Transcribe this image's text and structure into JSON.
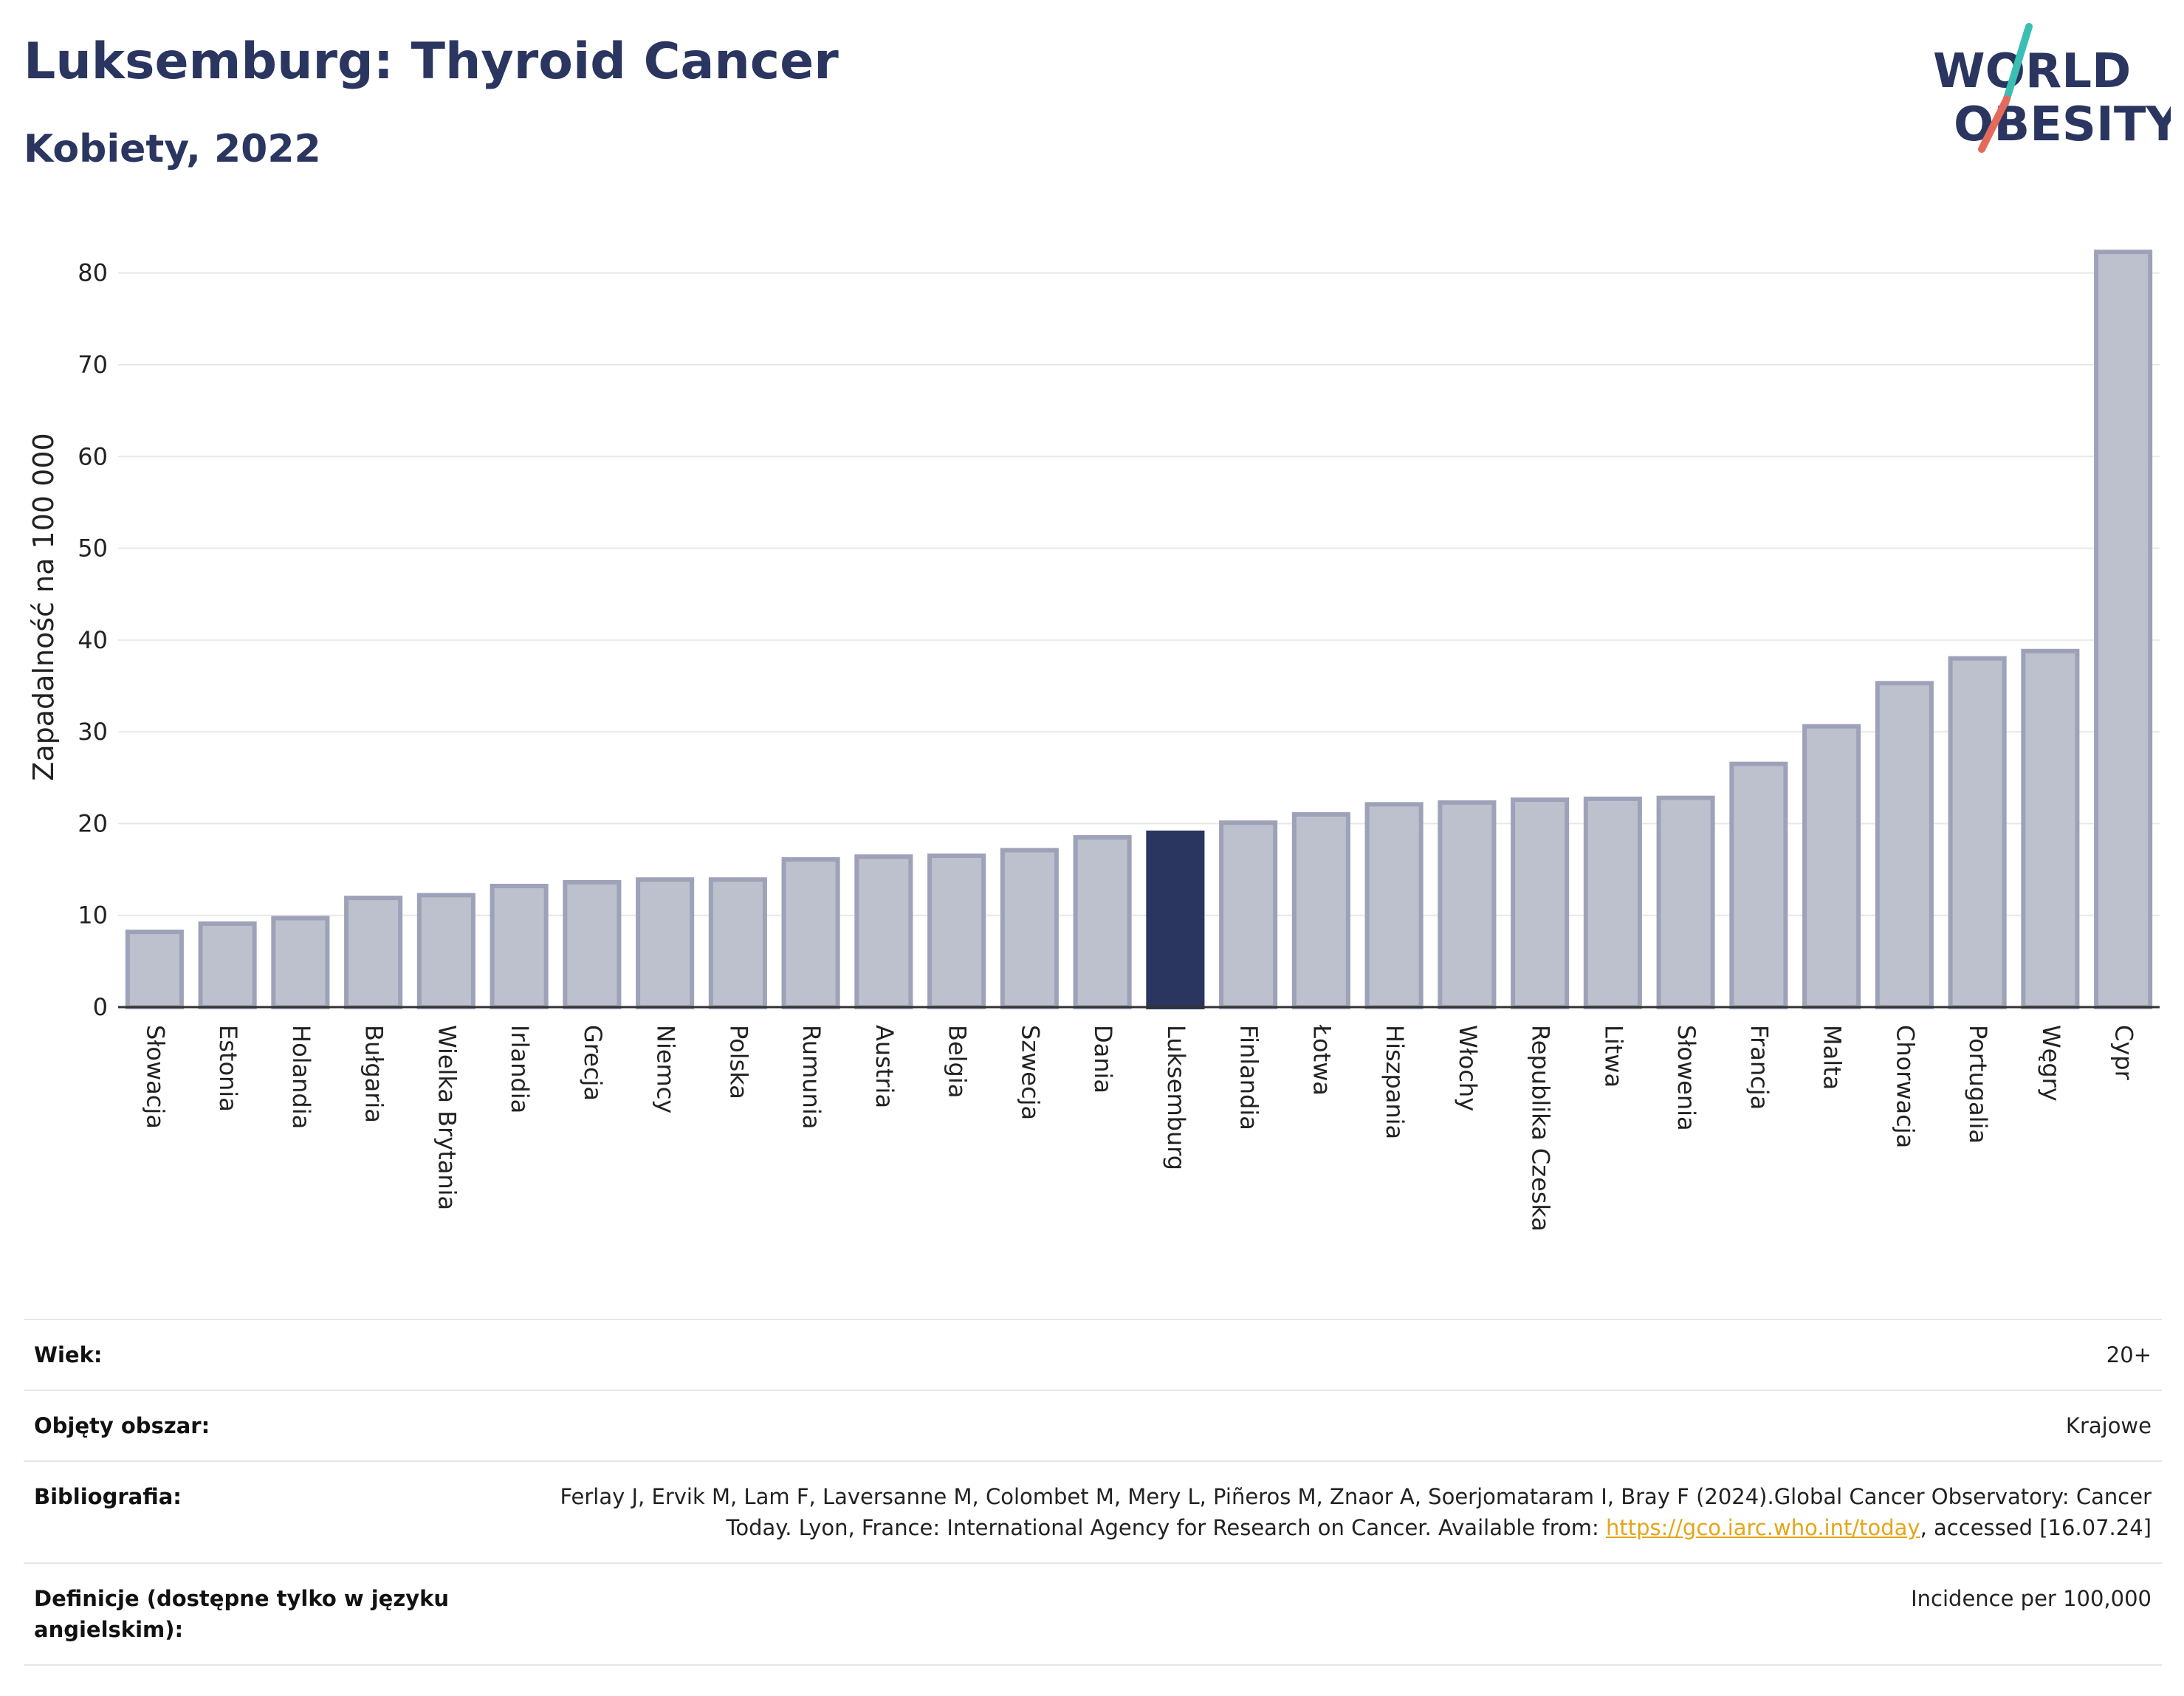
{
  "header": {
    "title": "Luksemburg: Thyroid Cancer",
    "subtitle": "Kobiety, 2022"
  },
  "logo": {
    "line1": "WORLD",
    "line2": "OBESITY",
    "colors": {
      "text": "#2a3560",
      "slash_top": "#3bbfb3",
      "slash_bottom": "#e46b5b"
    }
  },
  "colors": {
    "bar_fill": "#bdc0cd",
    "bar_stroke": "#9ea2b8",
    "highlight": "#2a3560",
    "grid": "#e8e8e8",
    "axis": "#333333"
  },
  "chart_data": {
    "type": "bar",
    "title": "Luksemburg: Thyroid Cancer",
    "subtitle": "Kobiety, 2022",
    "xlabel": "",
    "ylabel": "Zapadalność na 100 000",
    "ylim": [
      0,
      84
    ],
    "yticks": [
      0,
      10,
      20,
      30,
      40,
      50,
      60,
      70,
      80
    ],
    "grid": true,
    "highlight_category": "Luksemburg",
    "categories": [
      "Słowacja",
      "Estonia",
      "Holandia",
      "Bułgaria",
      "Wielka Brytania",
      "Irlandia",
      "Grecja",
      "Niemcy",
      "Polska",
      "Rumunia",
      "Austria",
      "Belgia",
      "Szwecja",
      "Dania",
      "Luksemburg",
      "Finlandia",
      "Łotwa",
      "Hiszpania",
      "Włochy",
      "Republika Czeska",
      "Litwa",
      "Słowenia",
      "Francja",
      "Malta",
      "Chorwacja",
      "Portugalia",
      "Węgry",
      "Cypr"
    ],
    "values": [
      8.2,
      9.1,
      9.7,
      11.9,
      12.2,
      13.2,
      13.6,
      13.9,
      13.9,
      16.1,
      16.4,
      16.5,
      17.1,
      18.5,
      19.0,
      20.1,
      21.0,
      22.1,
      22.3,
      22.6,
      22.7,
      22.8,
      26.5,
      30.6,
      35.3,
      38.0,
      38.8,
      82.3
    ]
  },
  "meta": {
    "rows": [
      {
        "label": "Wiek:",
        "value": "20+"
      },
      {
        "label": "Objęty obszar:",
        "value": "Krajowe"
      },
      {
        "label": "Bibliografia:",
        "value_pre": "Ferlay J, Ervik M, Lam F, Laversanne M, Colombet M, Mery L, Piñeros M, Znaor A, Soerjomataram I, Bray F (2024).Global Cancer Observatory: Cancer Today. Lyon, France: International Agency for Research on Cancer. Available from: ",
        "link": "https://gco.iarc.who.int/today",
        "value_post": ", accessed [16.07.24]"
      },
      {
        "label": "Definicje (dostępne tylko w języku angielskim):",
        "value": "Incidence per 100,000"
      }
    ]
  }
}
